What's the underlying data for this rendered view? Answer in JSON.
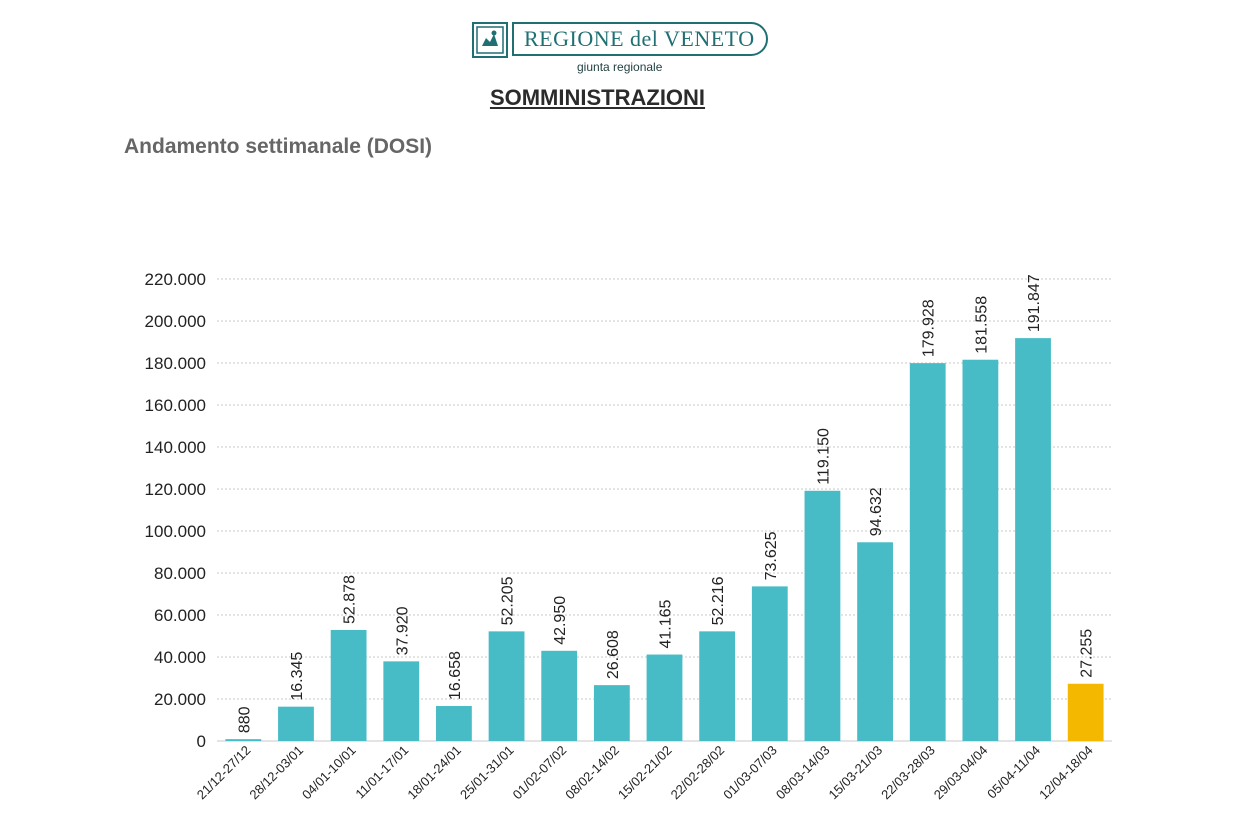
{
  "header": {
    "logo_name": "REGIONE del VENETO",
    "logo_sub": "giunta regionale",
    "title": "SOMMINISTRAZIONI"
  },
  "colors": {
    "bar": "#48bcc6",
    "highlight": "#f5b800",
    "grid": "#c8c8c8",
    "brand": "#1f6f73"
  },
  "chart_data": {
    "type": "bar",
    "title": "Andamento settimanale (DOSI)",
    "xlabel": "",
    "ylabel": "",
    "ylim": [
      0,
      220000
    ],
    "yticks": [
      "0",
      "20.000",
      "40.000",
      "60.000",
      "80.000",
      "100.000",
      "120.000",
      "140.000",
      "160.000",
      "180.000",
      "200.000",
      "220.000"
    ],
    "grid": true,
    "categories": [
      "21/12-27/12",
      "28/12-03/01",
      "04/01-10/01",
      "11/01-17/01",
      "18/01-24/01",
      "25/01-31/01",
      "01/02-07/02",
      "08/02-14/02",
      "15/02-21/02",
      "22/02-28/02",
      "01/03-07/03",
      "08/03-14/03",
      "15/03-21/03",
      "22/03-28/03",
      "29/03-04/04",
      "05/04-11/04",
      "12/04-18/04"
    ],
    "values": [
      880,
      16345,
      52878,
      37920,
      16658,
      52205,
      42950,
      26608,
      41165,
      52216,
      73625,
      119150,
      94632,
      179928,
      181558,
      191847,
      27255
    ],
    "data_labels": [
      "880",
      "16.345",
      "52.878",
      "37.920",
      "16.658",
      "52.205",
      "42.950",
      "26.608",
      "41.165",
      "52.216",
      "73.625",
      "119.150",
      "94.632",
      "179.928",
      "181.558",
      "191.847",
      "27.255"
    ],
    "highlighted_index": 16
  }
}
